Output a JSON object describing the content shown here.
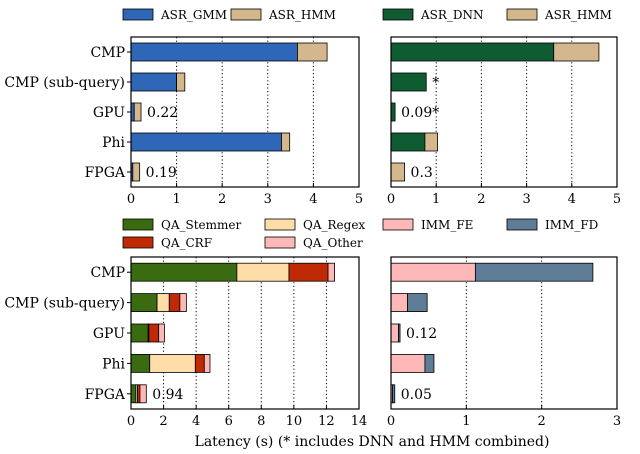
{
  "chart_data": [
    {
      "type": "bar",
      "orientation": "horizontal",
      "stacked": true,
      "categories": [
        "CMP",
        "CMP (sub-query)",
        "GPU",
        "Phi",
        "FPGA"
      ],
      "series": [
        {
          "name": "ASR_GMM",
          "color": "#2e66b8",
          "values": [
            3.65,
            1.0,
            0.07,
            3.3,
            0.04
          ]
        },
        {
          "name": "ASR_HMM",
          "color": "#d4b78c",
          "values": [
            0.65,
            0.18,
            0.15,
            0.18,
            0.15
          ]
        }
      ],
      "xlim": [
        0,
        5
      ],
      "xticks": [
        0,
        1,
        2,
        3,
        4,
        5
      ],
      "grid": "vertical dotted",
      "legend": "top",
      "annotations": [
        {
          "category": "GPU",
          "text": "0.22"
        },
        {
          "category": "FPGA",
          "text": "0.19"
        }
      ]
    },
    {
      "type": "bar",
      "orientation": "horizontal",
      "stacked": true,
      "categories": [
        "CMP",
        "CMP (sub-query)",
        "GPU",
        "Phi",
        "FPGA"
      ],
      "series": [
        {
          "name": "ASR_DNN",
          "color": "#0f5c32",
          "values": [
            3.6,
            0.78,
            0.09,
            0.75,
            0.0
          ]
        },
        {
          "name": "ASR_HMM",
          "color": "#d4b78c",
          "values": [
            1.0,
            0.0,
            0.0,
            0.28,
            0.3
          ]
        }
      ],
      "xlim": [
        0,
        5
      ],
      "xticks": [
        0,
        1,
        2,
        3,
        4,
        5
      ],
      "grid": "vertical dotted",
      "legend": "top",
      "annotations": [
        {
          "category": "CMP (sub-query)",
          "text": "*"
        },
        {
          "category": "GPU",
          "text": "0.09*"
        },
        {
          "category": "FPGA",
          "text": "0.3"
        }
      ]
    },
    {
      "type": "bar",
      "orientation": "horizontal",
      "stacked": true,
      "categories": [
        "CMP",
        "CMP (sub-query)",
        "GPU",
        "Phi",
        "FPGA"
      ],
      "series": [
        {
          "name": "QA_Stemmer",
          "color": "#3a6b10",
          "values": [
            6.5,
            1.6,
            1.05,
            1.15,
            0.3
          ]
        },
        {
          "name": "QA_Regex",
          "color": "#ffdda8",
          "values": [
            3.2,
            0.75,
            0.05,
            2.8,
            0.1
          ]
        },
        {
          "name": "QA_CRF",
          "color": "#bf2a05",
          "values": [
            2.4,
            0.65,
            0.6,
            0.55,
            0.15
          ]
        },
        {
          "name": "QA_Other",
          "color": "#ffb8b8",
          "values": [
            0.4,
            0.4,
            0.35,
            0.35,
            0.39
          ]
        }
      ],
      "xlim": [
        0,
        14
      ],
      "xticks": [
        0,
        2,
        4,
        6,
        8,
        10,
        12,
        14
      ],
      "grid": "vertical dotted",
      "legend": "top",
      "annotations": [
        {
          "category": "FPGA",
          "text": "0.94"
        }
      ]
    },
    {
      "type": "bar",
      "orientation": "horizontal",
      "stacked": true,
      "categories": [
        "CMP",
        "CMP (sub-query)",
        "GPU",
        "Phi",
        "FPGA"
      ],
      "series": [
        {
          "name": "IMM_FE",
          "color": "#ffb8b8",
          "values": [
            1.12,
            0.22,
            0.1,
            0.45,
            0.02
          ]
        },
        {
          "name": "IMM_FD",
          "color": "#5f7d96",
          "values": [
            1.56,
            0.26,
            0.02,
            0.12,
            0.03
          ]
        }
      ],
      "xlim": [
        0,
        3
      ],
      "xticks": [
        0,
        1,
        2,
        3
      ],
      "grid": "vertical dotted",
      "legend": "top",
      "annotations": [
        {
          "category": "GPU",
          "text": "0.12"
        },
        {
          "category": "FPGA",
          "text": "0.05"
        }
      ]
    }
  ],
  "xlabel": "Latency (s) (* includes DNN and HMM combined)"
}
